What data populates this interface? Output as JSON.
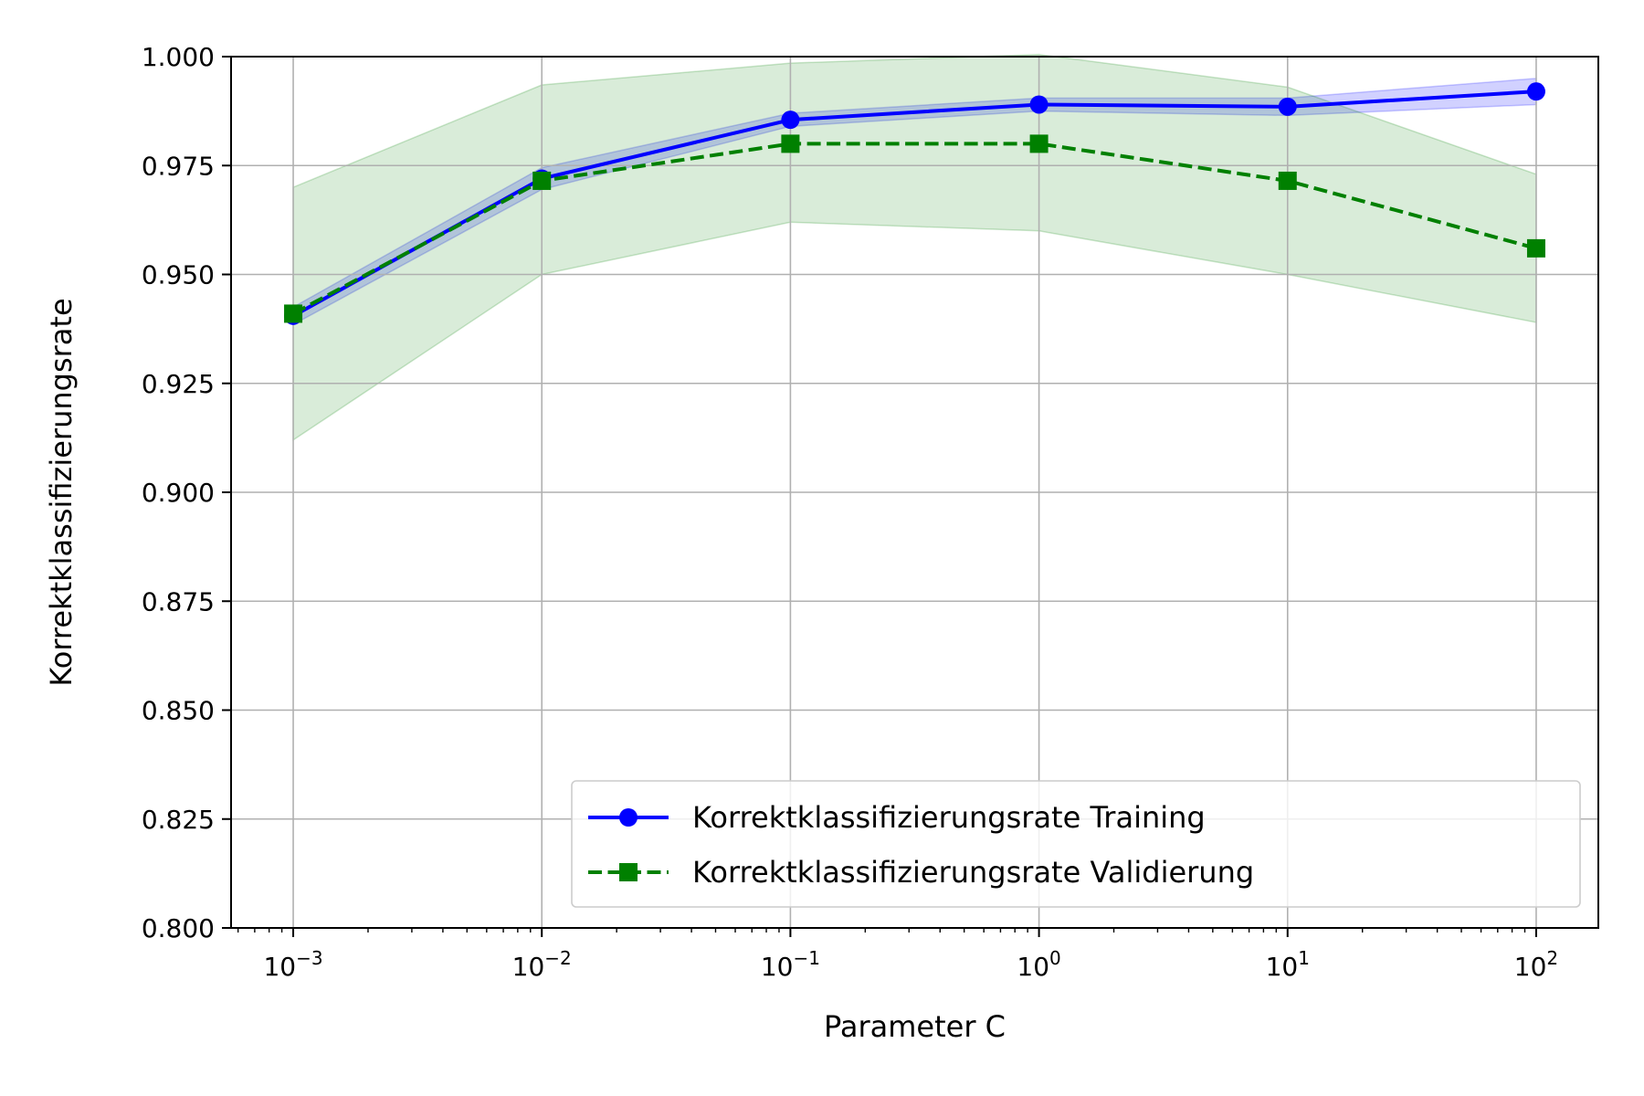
{
  "chart_data": {
    "type": "line",
    "title": "",
    "xlabel": "Parameter C",
    "ylabel": "Korrektklassifizierungsrate",
    "xscale": "log",
    "xlim_exp": [
      -3.25,
      2.25
    ],
    "ylim": [
      0.8,
      1.0
    ],
    "grid": true,
    "legend_loc": "lower right",
    "x": [
      0.001,
      0.01,
      0.1,
      1,
      10,
      100
    ],
    "x_tick_bases": [
      "10",
      "10",
      "10",
      "10",
      "10",
      "10"
    ],
    "x_tick_exponents": [
      "−3",
      "−2",
      "−1",
      "0",
      "1",
      "2"
    ],
    "y_ticks": [
      0.8,
      0.825,
      0.85,
      0.875,
      0.9,
      0.925,
      0.95,
      0.975,
      1.0
    ],
    "y_tick_labels": [
      "0.800",
      "0.825",
      "0.850",
      "0.875",
      "0.900",
      "0.925",
      "0.950",
      "0.975",
      "1.000"
    ],
    "series": [
      {
        "name": "Korrektklassifizierungsrate Training",
        "color": "#0000ff",
        "marker": "circle",
        "linestyle": "solid",
        "values": [
          0.9405,
          0.972,
          0.9855,
          0.989,
          0.9885,
          0.992
        ],
        "band_lower": [
          0.9385,
          0.9695,
          0.984,
          0.9875,
          0.9865,
          0.989
        ],
        "band_upper": [
          0.9425,
          0.9745,
          0.987,
          0.9905,
          0.9905,
          0.995
        ]
      },
      {
        "name": "Korrektklassifizierungsrate Validierung",
        "color": "#008000",
        "marker": "square",
        "linestyle": "dashed",
        "values": [
          0.941,
          0.9715,
          0.98,
          0.98,
          0.9715,
          0.956
        ],
        "band_lower": [
          0.912,
          0.95,
          0.962,
          0.96,
          0.95,
          0.939
        ],
        "band_upper": [
          0.97,
          0.9935,
          0.9985,
          1.0005,
          0.993,
          0.973
        ]
      }
    ]
  }
}
